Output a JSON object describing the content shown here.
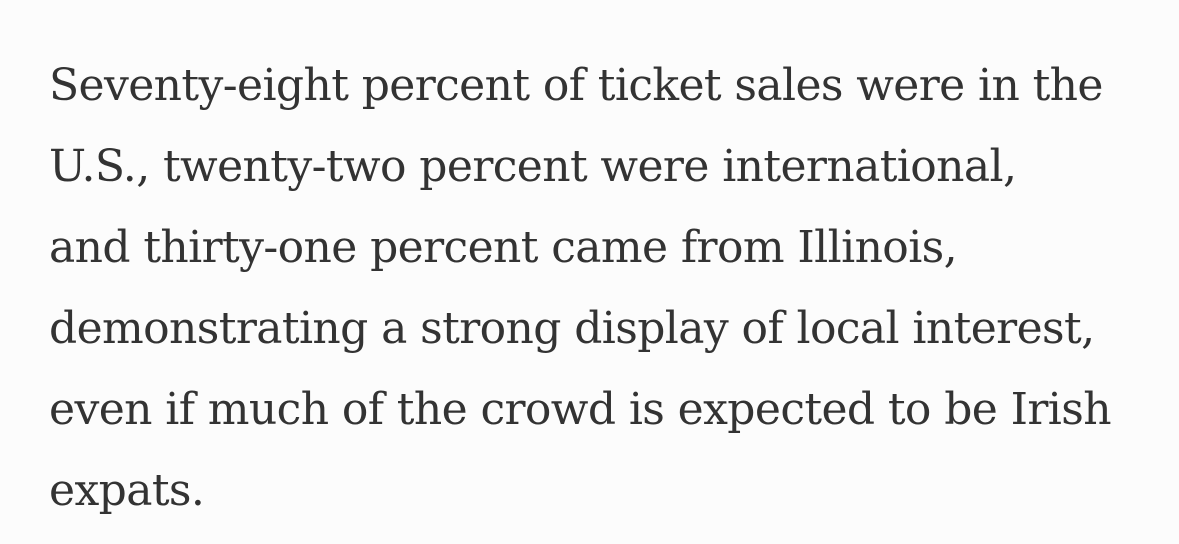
{
  "article": {
    "paragraph_lines": [
      "Seventy-eight percent of ticket sales were in the",
      "U.S., twenty-two percent were international,",
      "and thirty-one percent came from Illinois,",
      "demonstrating a strong display of local interest,",
      "even if much of the crowd is expected to be Irish",
      "expats."
    ]
  }
}
